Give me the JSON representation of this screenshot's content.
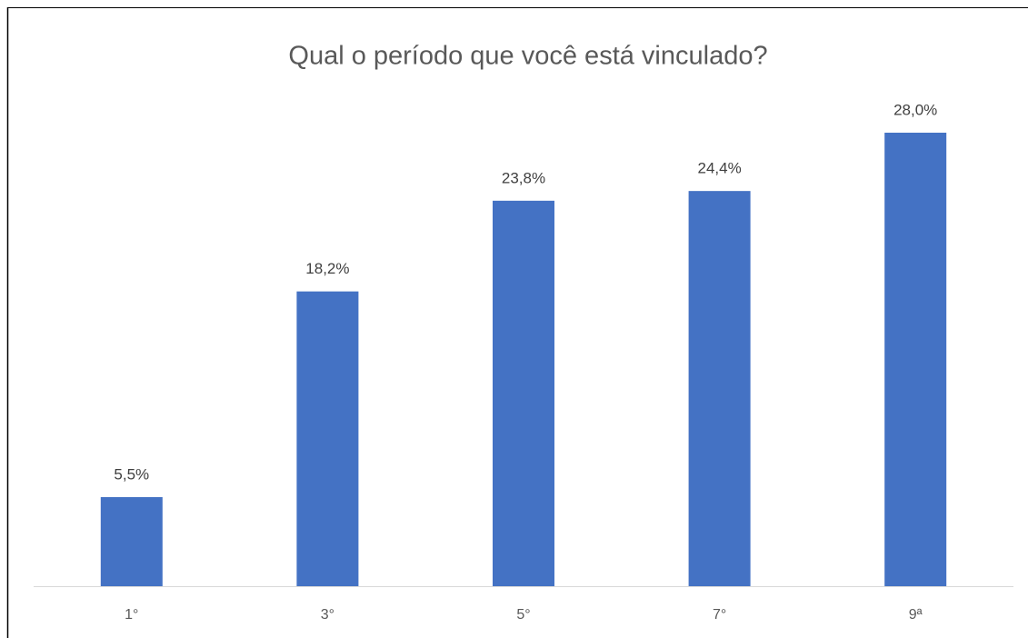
{
  "chart_data": {
    "type": "bar",
    "title": "Qual o período que você está vinculado?",
    "categories": [
      "1°",
      "3°",
      "5°",
      "7°",
      "9ª"
    ],
    "values": [
      5.5,
      18.2,
      23.8,
      24.4,
      28.0
    ],
    "value_labels": [
      "5,5%",
      "18,2%",
      "23,8%",
      "24,4%",
      "28,0%"
    ],
    "color": "#4472c4"
  }
}
